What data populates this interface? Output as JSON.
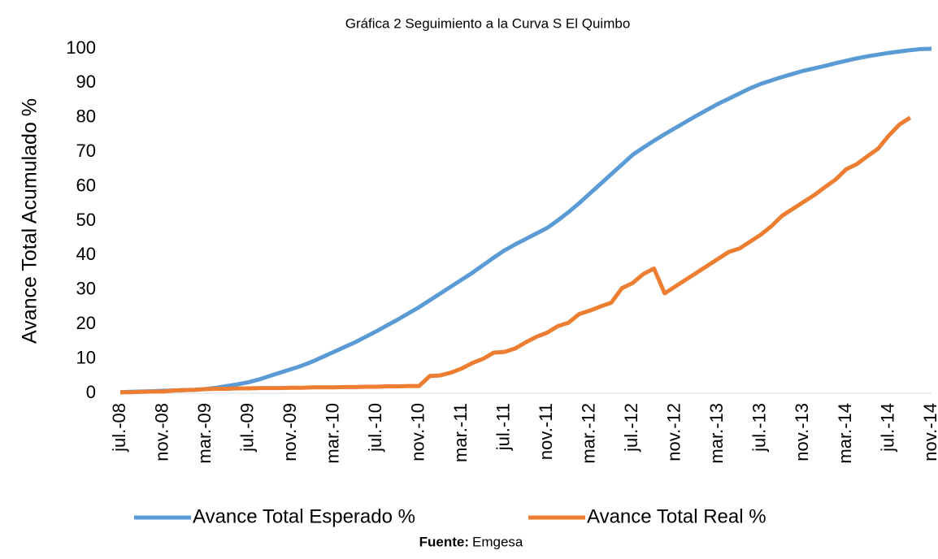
{
  "chart_data": {
    "type": "line",
    "title": "Gráfica 2 Seguimiento a la Curva S El Quimbo",
    "y_label": "Avance Total Acumulado %",
    "source_label": "Fuente:",
    "source": "Emgesa",
    "categories": [
      "jul.-08",
      null,
      null,
      null,
      "nov.-08",
      null,
      null,
      null,
      "mar.-09",
      null,
      null,
      null,
      "jul.-09",
      null,
      null,
      null,
      "nov.-09",
      null,
      null,
      null,
      "mar.-10",
      null,
      null,
      null,
      "jul.-10",
      null,
      null,
      null,
      "nov.-10",
      null,
      null,
      null,
      "mar.-11",
      null,
      null,
      null,
      "jul.-11",
      null,
      null,
      null,
      "nov.-11",
      null,
      null,
      null,
      "mar.-12",
      null,
      null,
      null,
      "jul.-12",
      null,
      null,
      null,
      "nov.-12",
      null,
      null,
      null,
      "mar.-13",
      null,
      null,
      null,
      "jul.-13",
      null,
      null,
      null,
      "nov.-13",
      null,
      null,
      null,
      "mar.-14",
      null,
      null,
      null,
      "jul.-14",
      null,
      null,
      null,
      "nov.-14"
    ],
    "series": [
      {
        "name": "Avance Total Esperado %",
        "color": "#5b9bd5",
        "values": [
          0.3,
          0.4,
          0.5,
          0.6,
          0.7,
          0.8,
          0.9,
          1.0,
          1.2,
          1.6,
          2.1,
          2.6,
          3.2,
          4.0,
          5.0,
          6.0,
          7.0,
          8.0,
          9.2,
          10.6,
          12.0,
          13.4,
          14.8,
          16.4,
          18.0,
          19.7,
          21.4,
          23.2,
          25.0,
          27.0,
          29.0,
          31.0,
          33.0,
          35.0,
          37.2,
          39.4,
          41.5,
          43.2,
          44.8,
          46.4,
          48.0,
          50.2,
          52.6,
          55.2,
          58.0,
          60.8,
          63.6,
          66.4,
          69.2,
          71.3,
          73.3,
          75.2,
          77.0,
          78.8,
          80.6,
          82.3,
          84.0,
          85.5,
          87.0,
          88.5,
          89.8,
          90.8,
          91.8,
          92.7,
          93.6,
          94.3,
          95.0,
          95.8,
          96.5,
          97.2,
          97.8,
          98.3,
          98.8,
          99.2,
          99.6,
          99.9,
          100
        ]
      },
      {
        "name": "Avance Total Real %",
        "color": "#ed7d31",
        "values": [
          0.3,
          0.3,
          0.4,
          0.5,
          0.5,
          0.8,
          0.9,
          1.0,
          1.2,
          1.3,
          1.3,
          1.4,
          1.4,
          1.5,
          1.5,
          1.5,
          1.6,
          1.6,
          1.7,
          1.7,
          1.7,
          1.8,
          1.8,
          1.9,
          1.9,
          2.0,
          2.0,
          2.1,
          2.1,
          5.0,
          5.2,
          6.0,
          7.2,
          8.8,
          10.0,
          11.8,
          12.0,
          13.0,
          14.8,
          16.4,
          17.6,
          19.5,
          20.5,
          23.0,
          24.0,
          25.2,
          26.3,
          30.5,
          32.0,
          34.6,
          36.2,
          29.0,
          31.0,
          33.0,
          35.0,
          37.0,
          39.0,
          41.0,
          42.0,
          44.0,
          46.0,
          48.5,
          51.5,
          53.5,
          55.5,
          57.5,
          59.8,
          62.0,
          65.0,
          66.5,
          68.8,
          71.0,
          74.8,
          78.0,
          80.0,
          null,
          null
        ]
      }
    ],
    "ylim": [
      0,
      100
    ],
    "yticks": [
      0,
      10,
      20,
      30,
      40,
      50,
      60,
      70,
      80,
      90,
      100
    ],
    "legend": "bottom"
  }
}
